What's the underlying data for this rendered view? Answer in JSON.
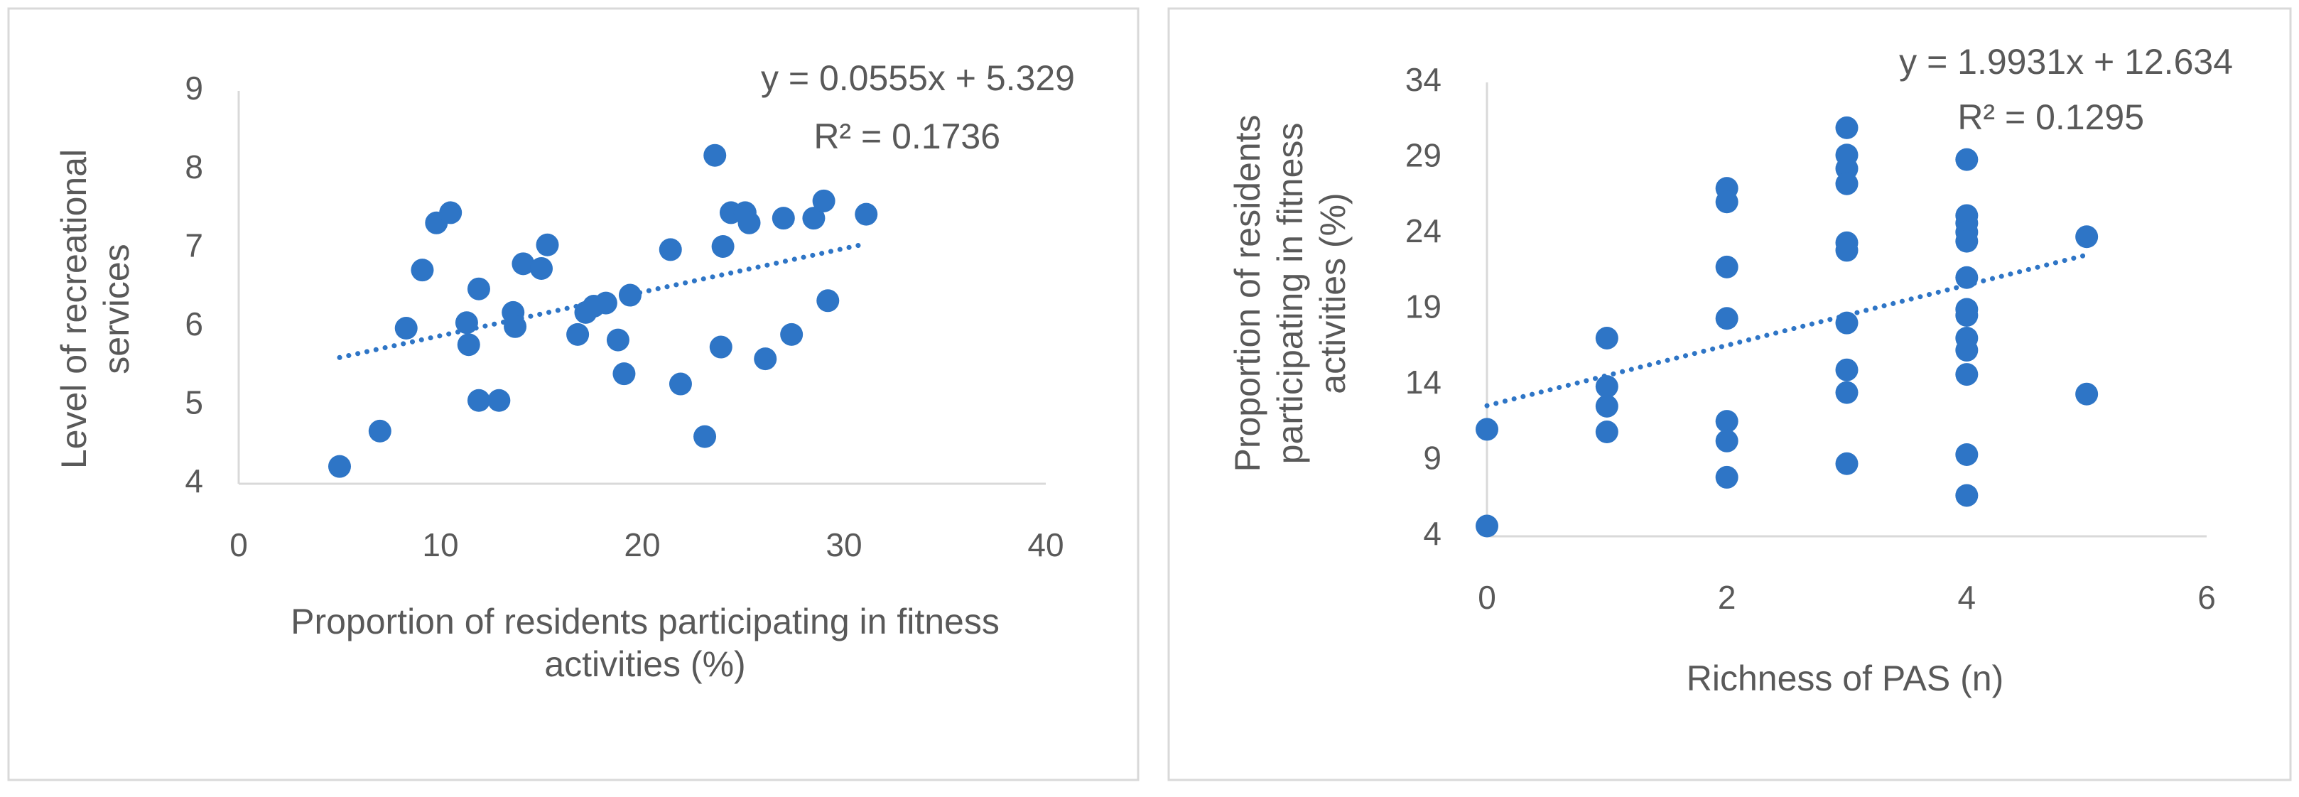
{
  "chart_data": [
    {
      "type": "scatter",
      "color": "#2e75c6",
      "x_label": "Proportion of residents participating in fitness activities (%)",
      "y_label": "Level of recreational services",
      "xlim": [
        0,
        40
      ],
      "xticks": [
        0,
        10,
        20,
        30,
        40
      ],
      "ylim": [
        4,
        9
      ],
      "yticks": [
        4,
        5,
        6,
        7,
        8,
        9
      ],
      "x": [
        5.0,
        7.0,
        8.3,
        9.1,
        9.8,
        10.5,
        11.3,
        11.4,
        11.9,
        11.9,
        12.9,
        13.6,
        13.7,
        14.1,
        15.0,
        15.3,
        16.8,
        17.2,
        17.6,
        18.2,
        18.8,
        19.1,
        19.4,
        21.4,
        21.9,
        23.1,
        23.6,
        23.9,
        24.0,
        24.4,
        25.1,
        25.3,
        26.1,
        27.0,
        27.4,
        28.5,
        29.0,
        29.2,
        31.1
      ],
      "values": [
        4.22,
        4.67,
        5.98,
        6.72,
        7.32,
        7.45,
        6.05,
        5.77,
        5.06,
        6.48,
        5.06,
        6.18,
        6.0,
        6.8,
        6.74,
        7.04,
        5.9,
        6.18,
        6.26,
        6.3,
        5.83,
        5.4,
        6.4,
        6.98,
        5.27,
        4.6,
        8.18,
        5.74,
        7.02,
        7.45,
        7.45,
        7.32,
        5.59,
        7.38,
        5.9,
        7.38,
        7.6,
        6.33,
        7.43
      ],
      "trendline": {
        "slope": 0.0555,
        "intercept": 5.329,
        "equation": "y = 0.0555x + 5.329",
        "r2": "R² = 0.1736"
      }
    },
    {
      "type": "scatter",
      "color": "#2e75c6",
      "x_label": "Richness of PAS (n)",
      "y_label": "Proportion of residents participating in fitness activities (%)",
      "xlim": [
        0,
        6
      ],
      "xticks": [
        0,
        2,
        4,
        6
      ],
      "ylim": [
        4,
        34
      ],
      "yticks": [
        4,
        9,
        14,
        19,
        24,
        29,
        34
      ],
      "x": [
        0,
        0,
        1,
        1,
        1,
        1,
        2,
        2,
        2,
        2,
        2,
        2,
        2,
        3,
        3,
        3,
        3,
        3,
        3,
        3,
        3,
        3,
        3,
        4,
        4,
        4,
        4,
        4,
        4,
        4,
        4,
        4,
        4,
        4,
        4,
        4,
        5,
        5
      ],
      "values": [
        11.07,
        4.68,
        17.1,
        13.9,
        12.6,
        10.9,
        27.0,
        26.1,
        21.8,
        18.4,
        11.6,
        10.3,
        7.9,
        31.0,
        29.2,
        28.3,
        27.3,
        23.4,
        22.9,
        18.1,
        15.0,
        13.5,
        8.8,
        28.9,
        25.2,
        24.7,
        24.1,
        23.5,
        21.1,
        19.0,
        18.6,
        17.1,
        16.3,
        14.7,
        9.4,
        6.7,
        23.8,
        13.4
      ],
      "trendline": {
        "slope": 1.9931,
        "intercept": 12.634,
        "equation": "y = 1.9931x + 12.634",
        "r2": "R² = 0.1295"
      }
    }
  ]
}
